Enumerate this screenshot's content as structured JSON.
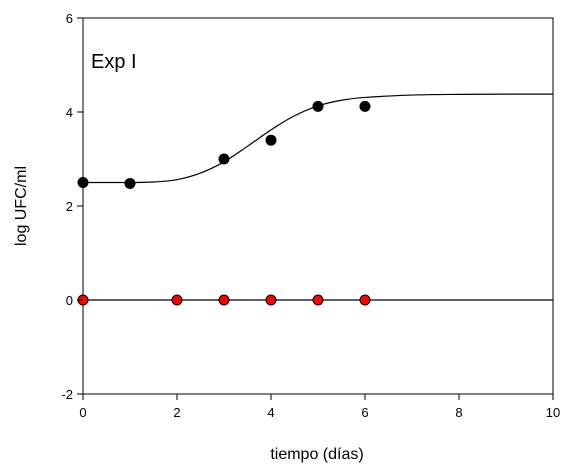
{
  "chart_data": {
    "type": "scatter",
    "title": "",
    "xlabel": "tiempo (días)",
    "ylabel": "log UFC/ml",
    "xlim": [
      0,
      10
    ],
    "ylim": [
      -2,
      6
    ],
    "xticks": [
      0,
      2,
      4,
      6,
      8,
      10
    ],
    "yticks": [
      -2,
      0,
      2,
      4,
      6
    ],
    "grid": false,
    "annotation": "Exp I",
    "series": [
      {
        "color": "#000000",
        "marker": "circle",
        "points": [
          [
            0,
            2.5
          ],
          [
            1,
            2.48
          ],
          [
            3,
            3.0
          ],
          [
            4,
            3.4
          ],
          [
            5,
            4.12
          ],
          [
            6,
            4.12
          ]
        ]
      },
      {
        "color": "#ff0000",
        "marker": "circle",
        "points": [
          [
            0,
            0
          ],
          [
            2,
            0
          ],
          [
            3,
            0
          ],
          [
            4,
            0
          ],
          [
            5,
            0
          ],
          [
            6,
            0
          ]
        ]
      }
    ],
    "fit_curves": [
      {
        "color": "#000000",
        "kind": "sigmoid",
        "points": [
          [
            0,
            2.5
          ],
          [
            1,
            2.5
          ],
          [
            1.5,
            2.51
          ],
          [
            2,
            2.56
          ],
          [
            2.5,
            2.7
          ],
          [
            3,
            2.94
          ],
          [
            3.5,
            3.27
          ],
          [
            4,
            3.62
          ],
          [
            4.5,
            3.92
          ],
          [
            5,
            4.13
          ],
          [
            5.5,
            4.25
          ],
          [
            6,
            4.31
          ],
          [
            7,
            4.36
          ],
          [
            8,
            4.375
          ],
          [
            9,
            4.38
          ],
          [
            10,
            4.38
          ]
        ]
      },
      {
        "color": "#000000",
        "kind": "horizontal",
        "points": [
          [
            0,
            0
          ],
          [
            10,
            0
          ]
        ]
      }
    ]
  }
}
